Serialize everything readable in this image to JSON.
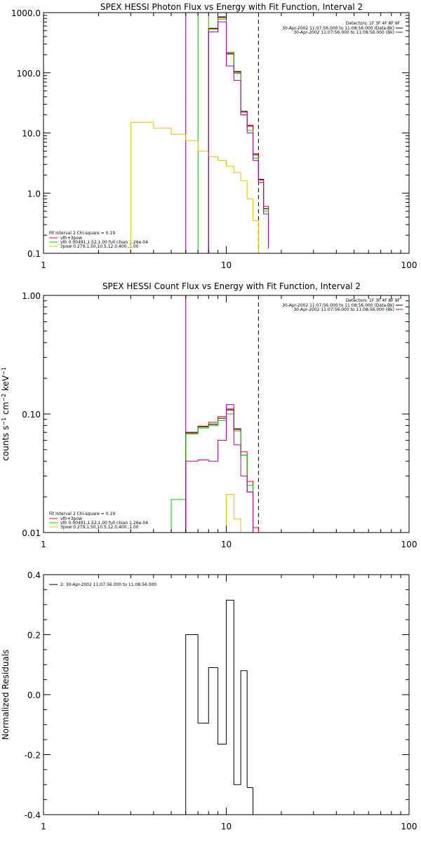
{
  "chart_data": [
    {
      "type": "line",
      "title": "SPEX HESSI Photon Flux vs Energy with Fit Function, Interval 2",
      "xlabel": "",
      "ylabel": "",
      "xscale": "log",
      "yscale": "log",
      "xlim": [
        1,
        100
      ],
      "ylim": [
        0.1,
        1000
      ],
      "x_ticks": [
        "1",
        "10",
        "100"
      ],
      "y_ticks": [
        "1000.0",
        "100.0",
        "10.0",
        "1.0",
        "0.1"
      ],
      "legend_top_right": {
        "lines": [
          "Detectors: 1F 3F 4F 8F 9F",
          "30-Apr-2002 11:07:56.000 to 11:08:56.000 (Data-Bk)",
          "30-Apr-2002 11:07:56.000 to 11:08:56.000 (Bk)"
        ]
      },
      "legend_bottom_left": {
        "header": "Fit Interval 2   Chi-square = 0.19",
        "entries": [
          {
            "label": "vth+3pow",
            "color": "#ff0000"
          },
          {
            "label": "vth 0.00491,1.52,1.00  full chian 1.26e-04",
            "color": "#00cc00"
          },
          {
            "label": "3pow 0.279,1.50,10.5,12.0,400.,1.00",
            "color": "#e8c000"
          }
        ]
      },
      "vlines": [
        {
          "x": 6.0,
          "style": "dotted",
          "color": "#000000"
        },
        {
          "x": 6.0,
          "style": "solid",
          "color": "#b000b0"
        },
        {
          "x": 15.0,
          "style": "dashed",
          "color": "#000000"
        }
      ],
      "bin_edges": [
        3,
        4,
        5,
        6,
        7,
        8,
        9,
        10,
        11,
        12,
        13,
        14,
        15,
        16,
        17
      ],
      "series": [
        {
          "name": "Data-Bk",
          "color": "#000000",
          "from": 5,
          "values": [
            550,
            850,
            210,
            105,
            23,
            13,
            4.5,
            1.7,
            0.55,
            0.15
          ]
        },
        {
          "name": "vth+3pow",
          "color": "#ff0000",
          "from": 5,
          "values": [
            540,
            830,
            205,
            102,
            22,
            13.5,
            4.3,
            1.65,
            0.6,
            0.16
          ]
        },
        {
          "name": "vth",
          "color": "#00cc00",
          "from": 4,
          "values": [
            2000,
            530,
            780,
            220,
            98,
            20,
            11,
            3.8,
            1.5,
            0.5,
            0.16
          ]
        },
        {
          "name": "3pow",
          "color": "#e8c000",
          "from": 0,
          "values": [
            15,
            12,
            9.5,
            7.5,
            5,
            4,
            3.5,
            2.8,
            2.2,
            1.6,
            0.8,
            0.35
          ]
        },
        {
          "name": "Bk",
          "color": "#b000b0",
          "from": 5,
          "values": [
            480,
            700,
            130,
            75,
            20,
            10,
            3.5,
            1.5,
            0.45,
            0.12
          ]
        }
      ]
    },
    {
      "type": "line",
      "title": "SPEX HESSI Count Flux vs Energy with Fit Function, Interval 2",
      "xlabel": "",
      "ylabel": "counts s^-1 cm^-2 keV^-1",
      "ylabel_text": "counts s",
      "ylabel_sup1": "−1",
      "ylabel_mid1": " cm",
      "ylabel_sup2": "−2",
      "ylabel_mid2": " keV",
      "ylabel_sup3": "−1",
      "xscale": "log",
      "yscale": "log",
      "xlim": [
        1,
        100
      ],
      "ylim": [
        0.01,
        1.0
      ],
      "x_ticks": [
        "1",
        "10",
        "100"
      ],
      "y_ticks": [
        "1.00",
        "0.10",
        "0.01"
      ],
      "legend_top_right": {
        "lines": [
          "Detectors: 1F 3F 4F 8F 9F",
          "30-Apr-2002 11:07:56.000 to 11:08:56.000 (Data-Bk)",
          "30-Apr-2002 11:07:56.000 to 11:08:56.000 (Bk)"
        ]
      },
      "legend_bottom_left": {
        "header": "Fit Interval 2   Chi-square = 0.19",
        "entries": [
          {
            "label": "vth+3pow",
            "color": "#ff0000"
          },
          {
            "label": "vth 0.00491,1.52,1.00  full chian 1.26e-04",
            "color": "#00cc00"
          },
          {
            "label": "3pow 0.279,1.50,10.5,12.0,400.,1.00",
            "color": "#e8c000"
          }
        ]
      },
      "vlines": [
        {
          "x": 6.0,
          "style": "dotted",
          "color": "#000000"
        },
        {
          "x": 6.0,
          "style": "solid",
          "color": "#b000b0"
        },
        {
          "x": 15.0,
          "style": "dashed",
          "color": "#000000"
        }
      ],
      "bin_edges": [
        5,
        6,
        7,
        8,
        9,
        10,
        11,
        12,
        13,
        14,
        15,
        16
      ],
      "series": [
        {
          "name": "Data-Bk",
          "color": "#000000",
          "from": 1,
          "values": [
            0.07,
            0.078,
            0.082,
            0.092,
            0.11,
            0.075,
            0.045,
            0.022
          ]
        },
        {
          "name": "vth+3pow",
          "color": "#ff0000",
          "from": 1,
          "values": [
            0.069,
            0.079,
            0.085,
            0.095,
            0.108,
            0.074,
            0.048,
            0.027,
            0.011
          ]
        },
        {
          "name": "vth",
          "color": "#00cc00",
          "from": 0,
          "values": [
            0.019,
            0.068,
            0.076,
            0.08,
            0.088,
            0.1,
            0.072,
            0.045,
            0.025,
            0.01
          ]
        },
        {
          "name": "3pow",
          "color": "#e8c000",
          "from": 5,
          "values": [
            0.021,
            0.013
          ]
        },
        {
          "name": "Bk",
          "color": "#b000b0",
          "from": 1,
          "values": [
            0.04,
            0.041,
            0.04,
            0.06,
            0.12,
            0.055,
            0.03,
            0.022
          ]
        }
      ]
    },
    {
      "type": "line",
      "title": "",
      "xlabel": "",
      "ylabel": "Normalized Residuals",
      "xscale": "log",
      "yscale": "linear",
      "xlim": [
        1,
        100
      ],
      "ylim": [
        -0.4,
        0.4
      ],
      "x_ticks": [
        "1",
        "10",
        "100"
      ],
      "y_ticks": [
        "0.4",
        "0.2",
        "0.0",
        "-0.2",
        "-0.4"
      ],
      "legend_text": "2: 30-Apr-2002 11:07:56.000 to 11:08:56.000",
      "bin_edges": [
        6,
        7,
        8,
        9,
        10,
        11,
        12,
        13,
        14,
        15
      ],
      "series": [
        {
          "name": "Residuals",
          "color": "#000000",
          "from": 0,
          "values": [
            0.2,
            -0.095,
            0.09,
            -0.165,
            0.315,
            -0.3,
            0.08,
            -0.31
          ]
        }
      ]
    }
  ]
}
